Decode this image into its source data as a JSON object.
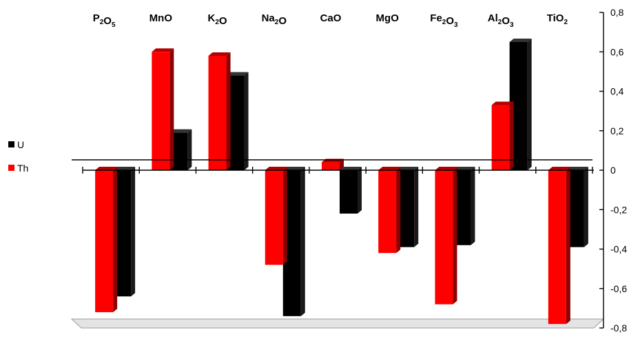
{
  "chart_data": {
    "type": "bar",
    "categories": [
      "P2O5",
      "MnO",
      "K2O",
      "Na2O",
      "CaO",
      "MgO",
      "Fe2O3",
      "Al2O3",
      "TiO2"
    ],
    "category_labels": [
      [
        {
          "t": "P"
        },
        {
          "t": "2",
          "sub": true
        },
        {
          "t": "O"
        },
        {
          "t": "5",
          "sub": true
        }
      ],
      [
        {
          "t": "MnO"
        }
      ],
      [
        {
          "t": "K"
        },
        {
          "t": "2",
          "sub": true
        },
        {
          "t": "O"
        }
      ],
      [
        {
          "t": "Na"
        },
        {
          "t": "2",
          "sub": true
        },
        {
          "t": "O"
        }
      ],
      [
        {
          "t": "CaO"
        }
      ],
      [
        {
          "t": "MgO"
        }
      ],
      [
        {
          "t": "Fe"
        },
        {
          "t": "2",
          "sub": true
        },
        {
          "t": "O"
        },
        {
          "t": "3",
          "sub": true
        }
      ],
      [
        {
          "t": "Al"
        },
        {
          "t": "2",
          "sub": true
        },
        {
          "t": "O"
        },
        {
          "t": "3",
          "sub": true
        }
      ],
      [
        {
          "t": "TiO"
        },
        {
          "t": "2",
          "sub": true
        }
      ]
    ],
    "series": [
      {
        "name": "Th",
        "color": "#ff0000",
        "values": [
          -0.72,
          0.6,
          0.58,
          -0.48,
          0.04,
          -0.42,
          -0.68,
          0.33,
          -0.78
        ]
      },
      {
        "name": "U",
        "color": "#000000",
        "values": [
          -0.64,
          0.19,
          0.48,
          -0.74,
          -0.22,
          -0.39,
          -0.38,
          0.65,
          -0.39
        ]
      }
    ],
    "ylim": [
      -0.8,
      0.8
    ],
    "yticks": [
      0.8,
      0.6,
      0.4,
      0.2,
      0,
      -0.2,
      -0.4,
      -0.6,
      -0.8
    ],
    "ytick_labels": [
      "0,8",
      "0,6",
      "0,4",
      "0,2",
      "0",
      "-0,2",
      "-0,4",
      "-0,6",
      "-0,8"
    ],
    "legend": {
      "position": "left",
      "entries": [
        "U",
        "Th"
      ]
    },
    "grid": false,
    "style": "3d-bar"
  }
}
